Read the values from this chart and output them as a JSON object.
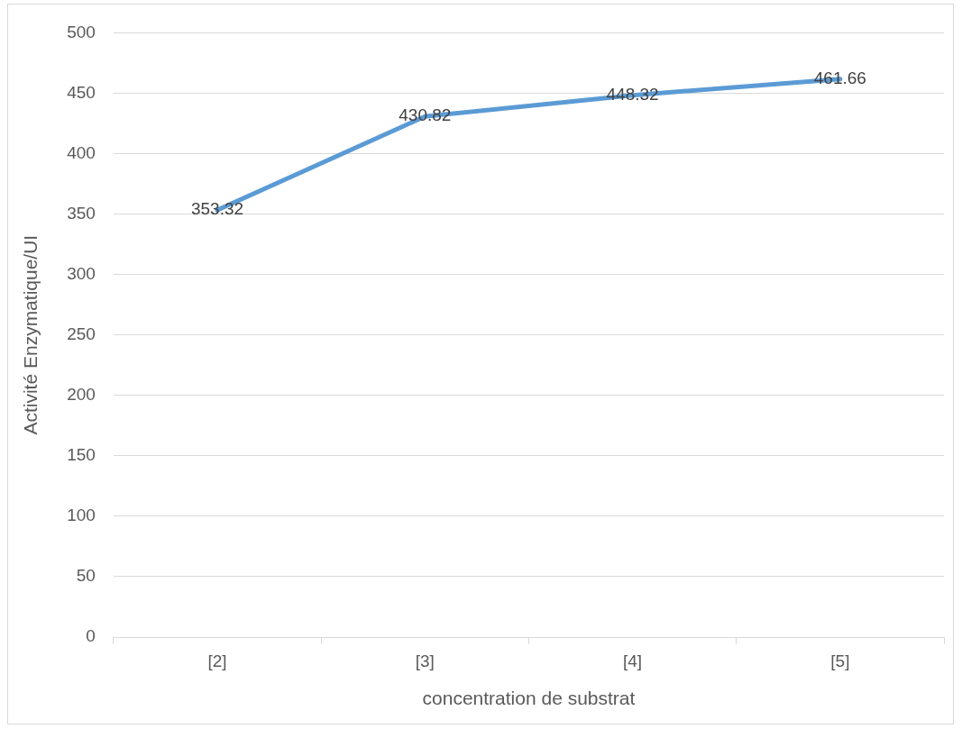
{
  "chart_data": {
    "type": "line",
    "xlabel": "concentration de substrat",
    "ylabel": "Activité Enzymatique/UI",
    "categories": [
      "[2]",
      "[3]",
      "[4]",
      "[5]"
    ],
    "series": [
      {
        "color": "#5b9bd5",
        "values": [
          353.32,
          430.82,
          448.32,
          461.66
        ]
      }
    ],
    "ylim": [
      0,
      500
    ],
    "yticks": [
      0,
      50,
      100,
      150,
      200,
      250,
      300,
      350,
      400,
      450,
      500
    ],
    "grid": "y",
    "legend": false,
    "marker": "none",
    "line_style": "solid",
    "data_labels": true
  }
}
